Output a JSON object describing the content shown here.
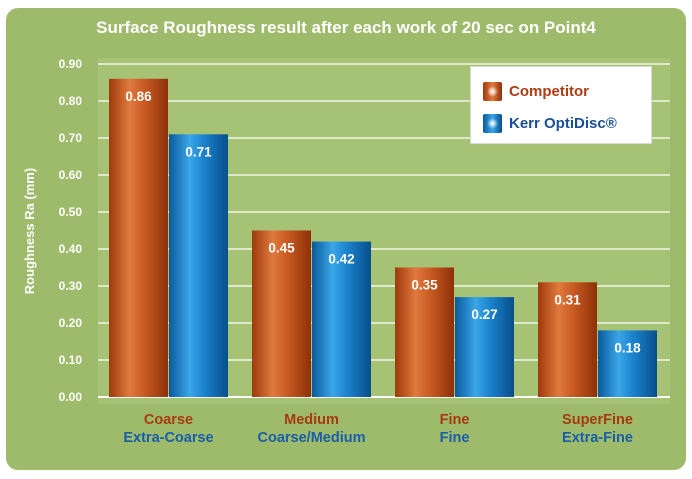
{
  "chart_data": {
    "type": "bar",
    "title": "Surface Roughness result after each work of 20 sec on Point4",
    "ylabel": "Roughness Ra (mm)",
    "xlabel": "",
    "ylim": [
      0,
      0.9
    ],
    "yticks": [
      "0.00",
      "0.10",
      "0.20",
      "0.30",
      "0.40",
      "0.50",
      "0.60",
      "0.70",
      "0.80",
      "0.90"
    ],
    "grid": true,
    "legend_position": "top-right",
    "categories": [
      {
        "competitor": "Coarse",
        "kerr": "Extra-Coarse"
      },
      {
        "competitor": "Medium",
        "kerr": "Coarse/Medium"
      },
      {
        "competitor": "Fine",
        "kerr": "Fine"
      },
      {
        "competitor": "SuperFine",
        "kerr": "Extra-Fine"
      }
    ],
    "series": [
      {
        "name": "Competitor",
        "values": [
          0.86,
          0.45,
          0.35,
          0.31
        ],
        "labels": [
          "0.86",
          "0.45",
          "0.35",
          "0.31"
        ],
        "color": "#c0541d",
        "label_color": "#a83a12"
      },
      {
        "name": "Kerr OptiDisc®",
        "values": [
          0.71,
          0.42,
          0.27,
          0.18
        ],
        "labels": [
          "0.71",
          "0.42",
          "0.27",
          "0.18"
        ],
        "color": "#1473b8",
        "label_color": "#1a5ea8"
      }
    ]
  }
}
